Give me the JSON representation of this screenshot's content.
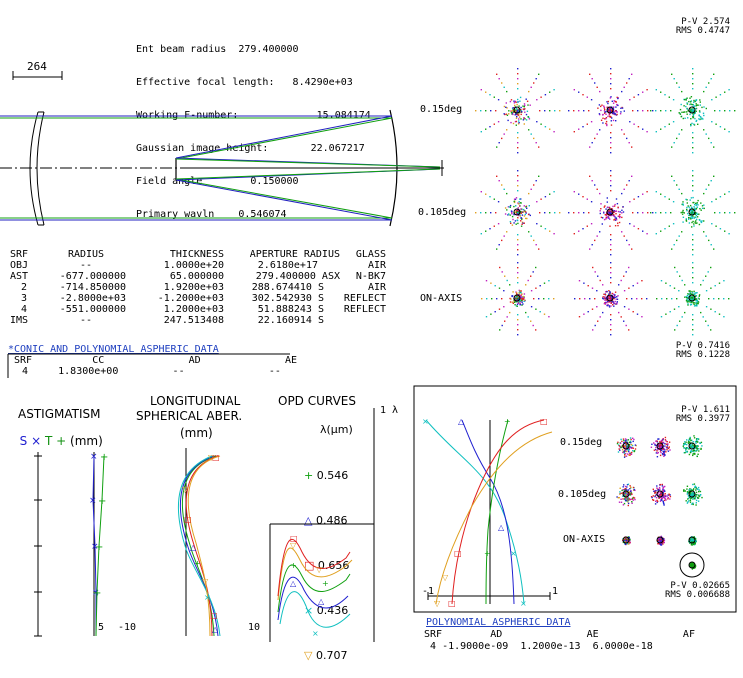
{
  "system": {
    "lines": [
      {
        "label": "Ent beam radius",
        "value": "279.400000"
      },
      {
        "label": "Effective focal length:",
        "value": "8.4290e+03"
      },
      {
        "label": "Working F-number:",
        "value": "15.084174"
      },
      {
        "label": "Gaussian image height:",
        "value": "22.067217"
      },
      {
        "label": "Field angle",
        "value": "0.150000"
      },
      {
        "label": "Primary wavln",
        "value": "0.546074"
      }
    ]
  },
  "scale_bar": {
    "value": "264"
  },
  "surface_table": {
    "headers": [
      "SRF",
      "RADIUS",
      "THICKNESS",
      "APERTURE RADIUS",
      "GLASS"
    ],
    "rows": [
      [
        "OBJ",
        "--",
        "1.0000e+20",
        "2.6180e+17",
        "AIR"
      ],
      [
        "AST",
        "-677.000000",
        "65.000000",
        "279.400000 ASX",
        "N-BK7"
      ],
      [
        "2",
        "-714.850000",
        "1.9200e+03",
        "288.674410 S",
        "AIR"
      ],
      [
        "3",
        "-2.8000e+03",
        "-1.2000e+03",
        "302.542930 S",
        "REFLECT"
      ],
      [
        "4",
        "-551.000000",
        "1.2000e+03",
        "51.888243 S",
        "REFLECT"
      ],
      [
        "IMS",
        "--",
        "247.513408",
        "22.160914 S",
        ""
      ]
    ]
  },
  "conic": {
    "title": "*CONIC AND POLYNOMIAL ASPHERIC DATA",
    "headers": [
      "SRF",
      "CC",
      "AD",
      "AE"
    ],
    "row": [
      "4",
      "1.8300e+00",
      "--",
      "--"
    ]
  },
  "spot_top": {
    "pv_label": "P-V 2.574",
    "rms_label": "RMS 0.4747",
    "fields": [
      "0.15deg",
      "0.105deg",
      "ON-AXIS"
    ],
    "pv2_label": "P-V 0.7416",
    "rms2_label": "RMS 0.1228"
  },
  "astig": {
    "title": "ASTIGMATISM",
    "legend_s": "S",
    "legend_x": "×",
    "legend_t": "T",
    "legend_plus": "+",
    "unit": "(mm)",
    "tick_right": "5"
  },
  "lsa": {
    "title1": "LONGITUDINAL",
    "title2": "SPHERICAL ABER.",
    "unit": "(mm)",
    "tick_left": "-10",
    "tick_right": "10"
  },
  "opd": {
    "title": "OPD CURVES",
    "scale": "1 λ",
    "lambda_label": "λ(μm)",
    "legend": [
      {
        "sym": "+",
        "value": "0.546",
        "color": "#10a010"
      },
      {
        "sym": "△",
        "value": "0.486",
        "color": "#2020d0"
      },
      {
        "sym": "□",
        "value": "0.656",
        "color": "#e02020"
      },
      {
        "sym": "×",
        "value": "0.436",
        "color": "#10c0c0"
      },
      {
        "sym": "▽",
        "value": "0.707",
        "color": "#e0a020"
      }
    ]
  },
  "panel": {
    "pv_label": "P-V 1.611",
    "rms_label": "RMS 0.3977",
    "fields": [
      "0.15deg",
      "0.105deg",
      "ON-AXIS"
    ],
    "tick_left": "-1",
    "tick_right": "1",
    "pv2_label": "P-V 0.02665",
    "rms2_label": "RMS 0.006688"
  },
  "poly": {
    "title": "POLYNOMIAL ASPHERIC DATA",
    "headers": [
      "SRF",
      "AD",
      "AE",
      "AF"
    ],
    "row": [
      "4",
      "-1.9000e-09",
      "1.2000e-13",
      "6.0000e-18"
    ]
  }
}
